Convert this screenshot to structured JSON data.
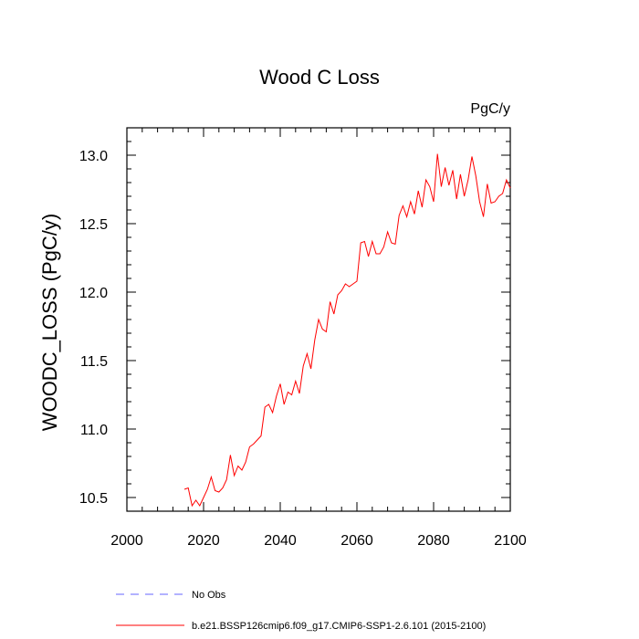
{
  "chart_data": {
    "type": "line",
    "title": "Wood C Loss",
    "units": "PgC/y",
    "xlabel": "",
    "ylabel": "WOODC_LOSS  (PgC/y)",
    "xlim": [
      2000,
      2100
    ],
    "ylim": [
      10.4,
      13.2
    ],
    "xticks": [
      2000,
      2020,
      2040,
      2060,
      2080,
      2100
    ],
    "xtick_labels": [
      "2000",
      "2020",
      "2040",
      "2060",
      "2080",
      "2100"
    ],
    "yticks": [
      10.5,
      11.0,
      11.5,
      12.0,
      12.5,
      13.0
    ],
    "ytick_labels": [
      "10.5",
      "11.0",
      "11.5",
      "12.0",
      "12.5",
      "13.0"
    ],
    "series": [
      {
        "name": "b.e21.BSSP126cmip6.f09_g17.CMIP6-SSP1-2.6.101 (2015-2100)",
        "color": "#ff0000",
        "style": "solid",
        "x": [
          2015,
          2016,
          2017,
          2018,
          2019,
          2020,
          2021,
          2022,
          2023,
          2024,
          2025,
          2026,
          2027,
          2028,
          2029,
          2030,
          2031,
          2032,
          2033,
          2034,
          2035,
          2036,
          2037,
          2038,
          2039,
          2040,
          2041,
          2042,
          2043,
          2044,
          2045,
          2046,
          2047,
          2048,
          2049,
          2050,
          2051,
          2052,
          2053,
          2054,
          2055,
          2056,
          2057,
          2058,
          2059,
          2060,
          2061,
          2062,
          2063,
          2064,
          2065,
          2066,
          2067,
          2068,
          2069,
          2070,
          2071,
          2072,
          2073,
          2074,
          2075,
          2076,
          2077,
          2078,
          2079,
          2080,
          2081,
          2082,
          2083,
          2084,
          2085,
          2086,
          2087,
          2088,
          2089,
          2090,
          2091,
          2092,
          2093,
          2094,
          2095,
          2096,
          2097,
          2098,
          2099,
          2100
        ],
        "values": [
          10.56,
          10.57,
          10.44,
          10.48,
          10.44,
          10.5,
          10.56,
          10.65,
          10.55,
          10.54,
          10.57,
          10.63,
          10.81,
          10.66,
          10.73,
          10.7,
          10.76,
          10.87,
          10.89,
          10.92,
          10.95,
          11.16,
          11.18,
          11.12,
          11.24,
          11.33,
          11.18,
          11.27,
          11.25,
          11.35,
          11.26,
          11.46,
          11.55,
          11.44,
          11.65,
          11.8,
          11.73,
          11.71,
          11.93,
          11.84,
          11.98,
          12.01,
          12.06,
          12.04,
          12.06,
          12.08,
          12.36,
          12.37,
          12.26,
          12.37,
          12.28,
          12.28,
          12.33,
          12.44,
          12.36,
          12.35,
          12.56,
          12.63,
          12.55,
          12.66,
          12.57,
          12.74,
          12.62,
          12.82,
          12.77,
          12.66,
          13.01,
          12.77,
          12.91,
          12.78,
          12.89,
          12.68,
          12.86,
          12.7,
          12.82,
          12.99,
          12.85,
          12.66,
          12.55,
          12.79,
          12.65,
          12.66,
          12.7,
          12.72,
          12.82,
          12.76
        ]
      },
      {
        "name": "No Obs",
        "color": "#6666ff",
        "style": "dashed",
        "x": [],
        "values": []
      }
    ],
    "legend": "bottom-left"
  }
}
